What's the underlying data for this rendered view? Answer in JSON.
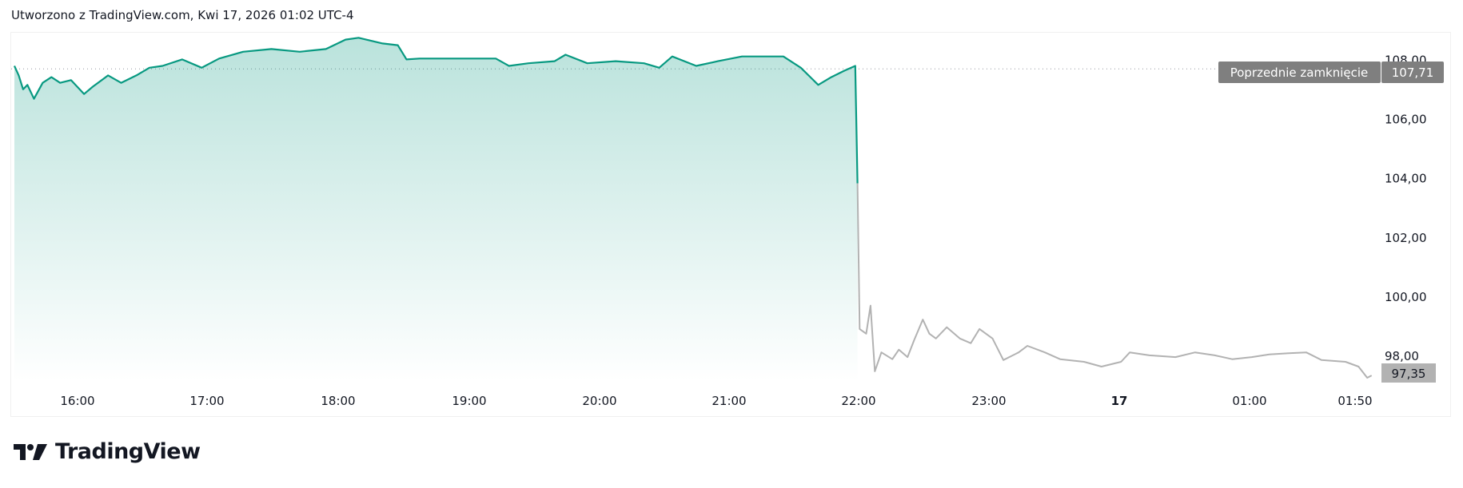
{
  "header": {
    "title": "Utworzono z TradingView.com, Kwi 17, 2026 01:02 UTC-4"
  },
  "branding": {
    "logo_text": "TradingView"
  },
  "colors": {
    "up_line": "#089981",
    "after_hours_line": "#b2b2b2",
    "prev_close_badge": "#7f7f7f",
    "last_price_badge": "#b2b2b2"
  },
  "chart_data": {
    "type": "area",
    "ylim": [
      97,
      108.2
    ],
    "y_ticks": [
      "108,00",
      "106,00",
      "104,00",
      "102,00",
      "100,00",
      "98,00"
    ],
    "y_tick_values": [
      108,
      106,
      104,
      102,
      100,
      98
    ],
    "x_ticks": [
      "16:00",
      "17:00",
      "18:00",
      "19:00",
      "20:00",
      "21:00",
      "22:00",
      "23:00",
      "17",
      "01:00",
      "01:50"
    ],
    "previous_close": {
      "label": "Poprzednie zamknięcie",
      "value": 107.71,
      "value_label": "107,71"
    },
    "last_price": {
      "value": 97.35,
      "value_label": "97,35"
    },
    "series": [
      {
        "session": "regular",
        "color": "#089981",
        "points": [
          [
            "15:31",
            107.81
          ],
          [
            "15:33",
            107.49
          ],
          [
            "15:35",
            107.02
          ],
          [
            "15:37",
            107.17
          ],
          [
            "15:40",
            106.7
          ],
          [
            "15:44",
            107.24
          ],
          [
            "15:48",
            107.43
          ],
          [
            "15:52",
            107.24
          ],
          [
            "15:57",
            107.33
          ],
          [
            "16:03",
            106.86
          ],
          [
            "16:07",
            107.11
          ],
          [
            "16:14",
            107.49
          ],
          [
            "16:20",
            107.24
          ],
          [
            "16:27",
            107.49
          ],
          [
            "16:33",
            107.75
          ],
          [
            "16:39",
            107.81
          ],
          [
            "16:48",
            108.03
          ],
          [
            "16:57",
            107.75
          ],
          [
            "17:05",
            108.06
          ],
          [
            "17:16",
            108.29
          ],
          [
            "17:29",
            108.38
          ],
          [
            "17:42",
            108.29
          ],
          [
            "17:54",
            108.38
          ],
          [
            "18:03",
            108.7
          ],
          [
            "18:09",
            108.76
          ],
          [
            "18:20",
            108.57
          ],
          [
            "18:27",
            108.51
          ],
          [
            "18:31",
            108.03
          ],
          [
            "18:37",
            108.06
          ],
          [
            "18:50",
            108.06
          ],
          [
            "19:03",
            108.06
          ],
          [
            "19:12",
            108.06
          ],
          [
            "19:18",
            107.81
          ],
          [
            "19:27",
            107.9
          ],
          [
            "19:39",
            107.97
          ],
          [
            "19:44",
            108.19
          ],
          [
            "19:54",
            107.9
          ],
          [
            "20:07",
            107.97
          ],
          [
            "20:20",
            107.9
          ],
          [
            "20:27",
            107.75
          ],
          [
            "20:33",
            108.13
          ],
          [
            "20:44",
            107.81
          ],
          [
            "20:54",
            107.97
          ],
          [
            "21:05",
            108.13
          ],
          [
            "21:16",
            108.13
          ],
          [
            "21:24",
            108.13
          ],
          [
            "21:32",
            107.75
          ],
          [
            "21:40",
            107.17
          ],
          [
            "21:46",
            107.43
          ],
          [
            "21:52",
            107.65
          ],
          [
            "21:57",
            107.81
          ],
          [
            "21:58",
            103.84
          ]
        ]
      },
      {
        "session": "extended",
        "color": "#b2b2b2",
        "points": [
          [
            "21:58",
            103.84
          ],
          [
            "21:59",
            98.92
          ],
          [
            "22:02",
            98.76
          ],
          [
            "22:04",
            99.71
          ],
          [
            "22:06",
            97.49
          ],
          [
            "22:09",
            98.13
          ],
          [
            "22:14",
            97.9
          ],
          [
            "22:17",
            98.22
          ],
          [
            "22:21",
            97.97
          ],
          [
            "22:24",
            98.54
          ],
          [
            "22:28",
            99.24
          ],
          [
            "22:31",
            98.76
          ],
          [
            "22:34",
            98.6
          ],
          [
            "22:39",
            98.98
          ],
          [
            "22:45",
            98.6
          ],
          [
            "22:50",
            98.44
          ],
          [
            "22:54",
            98.92
          ],
          [
            "23:00",
            98.6
          ],
          [
            "23:05",
            97.87
          ],
          [
            "23:12",
            98.13
          ],
          [
            "23:16",
            98.35
          ],
          [
            "23:24",
            98.13
          ],
          [
            "23:31",
            97.9
          ],
          [
            "23:42",
            97.81
          ],
          [
            "23:50",
            97.65
          ],
          [
            "23:59",
            97.81
          ],
          [
            "00:03",
            98.13
          ],
          [
            "00:12",
            98.03
          ],
          [
            "00:24",
            97.97
          ],
          [
            "00:33",
            98.13
          ],
          [
            "00:42",
            98.03
          ],
          [
            "00:50",
            97.9
          ],
          [
            "00:59",
            97.97
          ],
          [
            "01:07",
            98.06
          ],
          [
            "01:16",
            98.1
          ],
          [
            "01:24",
            98.13
          ],
          [
            "01:31",
            97.87
          ],
          [
            "01:42",
            97.81
          ],
          [
            "01:48",
            97.65
          ],
          [
            "01:52",
            97.27
          ],
          [
            "01:54",
            97.35
          ]
        ]
      }
    ]
  }
}
